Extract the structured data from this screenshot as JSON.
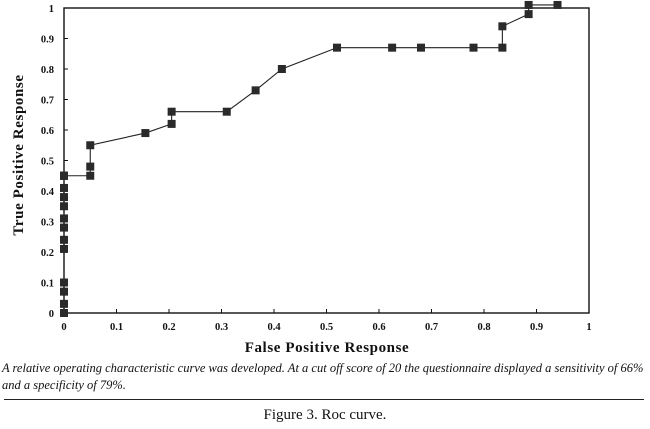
{
  "chart_data": {
    "type": "line",
    "title": "",
    "xlabel": "False Positive Response",
    "ylabel": "True Positive Response",
    "xlim": [
      0,
      1
    ],
    "ylim": [
      0,
      1
    ],
    "grid": false,
    "x_ticks": [
      "0",
      "0.1",
      "0.2",
      "0.3",
      "0.4",
      "0.5",
      "0.6",
      "0.7",
      "0.8",
      "0.9",
      "1"
    ],
    "y_ticks": [
      "0",
      "0.1",
      "0.2",
      "0.3",
      "0.4",
      "0.5",
      "0.6",
      "0.7",
      "0.8",
      "0.9",
      "1"
    ],
    "series": [
      {
        "name": "ROC",
        "marker": "square",
        "x": [
          0,
          0,
          0,
          0,
          0,
          0,
          0,
          0,
          0,
          0,
          0,
          0,
          0,
          0,
          0,
          0.05,
          0.05,
          0.05,
          0.155,
          0.205,
          0.205,
          0.31,
          0.365,
          0.415,
          0.52,
          0.625,
          0.68,
          0.78,
          0.835,
          0.835,
          0.885,
          0.885,
          0.94
        ],
        "y": [
          0,
          0.03,
          0.07,
          0.1,
          0.21,
          0.24,
          0.28,
          0.31,
          0.35,
          0.38,
          0.41,
          0.45,
          0.45,
          0.45,
          0.45,
          0.45,
          0.48,
          0.55,
          0.59,
          0.62,
          0.66,
          0.66,
          0.73,
          0.8,
          0.87,
          0.87,
          0.87,
          0.87,
          0.87,
          0.94,
          0.98,
          1.01,
          1.01
        ]
      }
    ]
  },
  "caption": "A relative operating characteristic curve was developed. At a cut off score of 20 the questionnaire displayed a sensitivity of 66% and a specificity of 79%.",
  "figure_label": "Figure 3. Roc curve."
}
